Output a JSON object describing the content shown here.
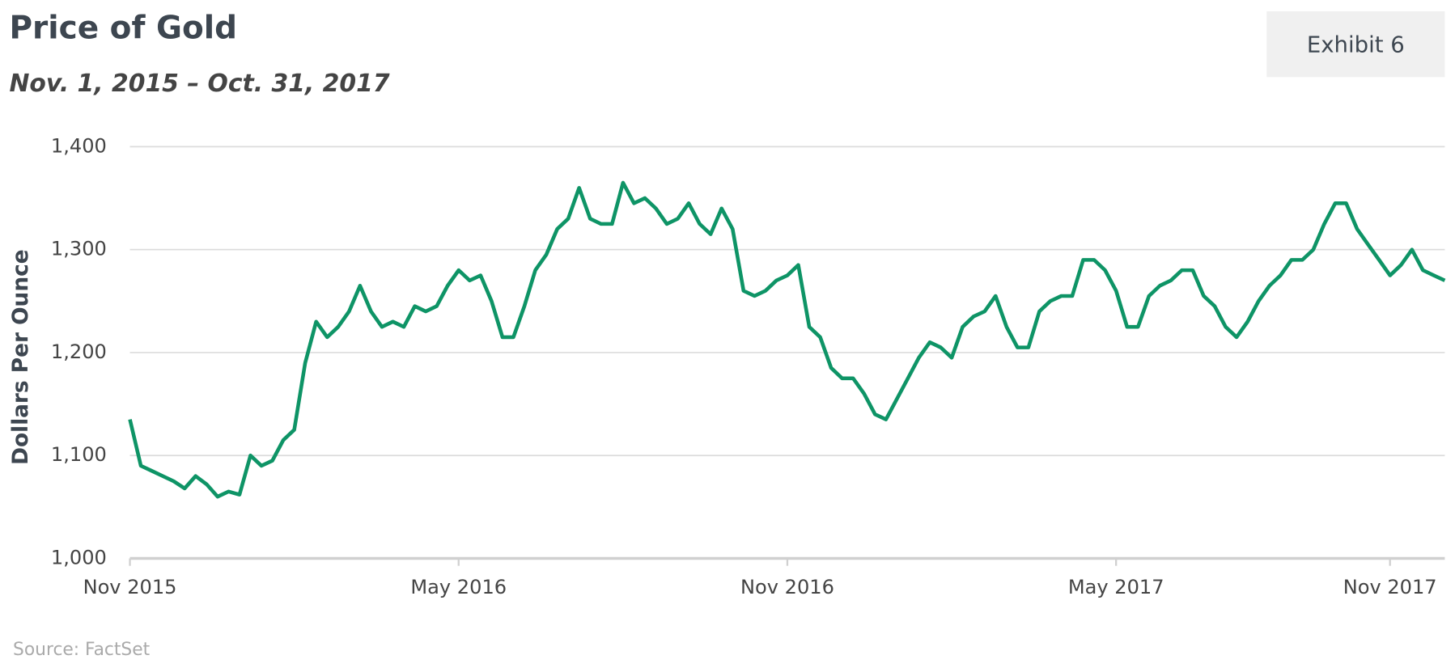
{
  "chart_data": {
    "type": "line",
    "title": "Price of Gold",
    "subtitle": "Nov. 1, 2015 – Oct. 31, 2017",
    "badge": "Exhibit 6",
    "ylabel": "Dollars Per Ounce",
    "source": "Source: FactSet",
    "color": "#0e9466",
    "grid": true,
    "ylim": [
      1000,
      1400
    ],
    "yticks": [
      {
        "value": 1000,
        "label": "1,000"
      },
      {
        "value": 1100,
        "label": "1,100"
      },
      {
        "value": 1200,
        "label": "1,200"
      },
      {
        "value": 1300,
        "label": "1,300"
      },
      {
        "value": 1400,
        "label": "1,400"
      }
    ],
    "categories": [
      "Nov 2015",
      null,
      null,
      null,
      null,
      null,
      null,
      null,
      null,
      null,
      null,
      null,
      null,
      null,
      null,
      null,
      null,
      null,
      null,
      null,
      null,
      null,
      null,
      null,
      null,
      null,
      null,
      null,
      null,
      null,
      "May 2016",
      null,
      null,
      null,
      null,
      null,
      null,
      null,
      null,
      null,
      null,
      null,
      null,
      null,
      null,
      null,
      null,
      null,
      null,
      null,
      null,
      null,
      null,
      null,
      null,
      null,
      null,
      null,
      null,
      null,
      "Nov 2016",
      null,
      null,
      null,
      null,
      null,
      null,
      null,
      null,
      null,
      null,
      null,
      null,
      null,
      null,
      null,
      null,
      null,
      null,
      null,
      null,
      null,
      null,
      null,
      null,
      null,
      null,
      null,
      null,
      null,
      "May 2017",
      null,
      null,
      null,
      null,
      null,
      null,
      null,
      null,
      null,
      null,
      null,
      null,
      null,
      null,
      null,
      null,
      null,
      null,
      null,
      null,
      null,
      null,
      null,
      null,
      "Nov 2017",
      null,
      null,
      null,
      null,
      null
    ],
    "values": [
      1135,
      1090,
      1085,
      1080,
      1075,
      1068,
      1080,
      1072,
      1060,
      1065,
      1062,
      1100,
      1090,
      1095,
      1115,
      1125,
      1190,
      1230,
      1215,
      1225,
      1240,
      1265,
      1240,
      1225,
      1230,
      1225,
      1245,
      1240,
      1245,
      1265,
      1280,
      1270,
      1275,
      1250,
      1215,
      1215,
      1245,
      1280,
      1295,
      1320,
      1330,
      1360,
      1330,
      1325,
      1325,
      1365,
      1345,
      1350,
      1340,
      1325,
      1330,
      1345,
      1325,
      1315,
      1340,
      1320,
      1260,
      1255,
      1260,
      1270,
      1275,
      1285,
      1225,
      1215,
      1185,
      1175,
      1175,
      1160,
      1140,
      1135,
      1155,
      1175,
      1195,
      1210,
      1205,
      1195,
      1225,
      1235,
      1240,
      1255,
      1225,
      1205,
      1205,
      1240,
      1250,
      1255,
      1255,
      1290,
      1290,
      1280,
      1260,
      1225,
      1225,
      1255,
      1265,
      1270,
      1280,
      1280,
      1255,
      1245,
      1225,
      1215,
      1230,
      1250,
      1265,
      1275,
      1290,
      1290,
      1300,
      1325,
      1345,
      1345,
      1320,
      1305,
      1290,
      1275,
      1285,
      1300,
      1280,
      1275,
      1270
    ]
  }
}
